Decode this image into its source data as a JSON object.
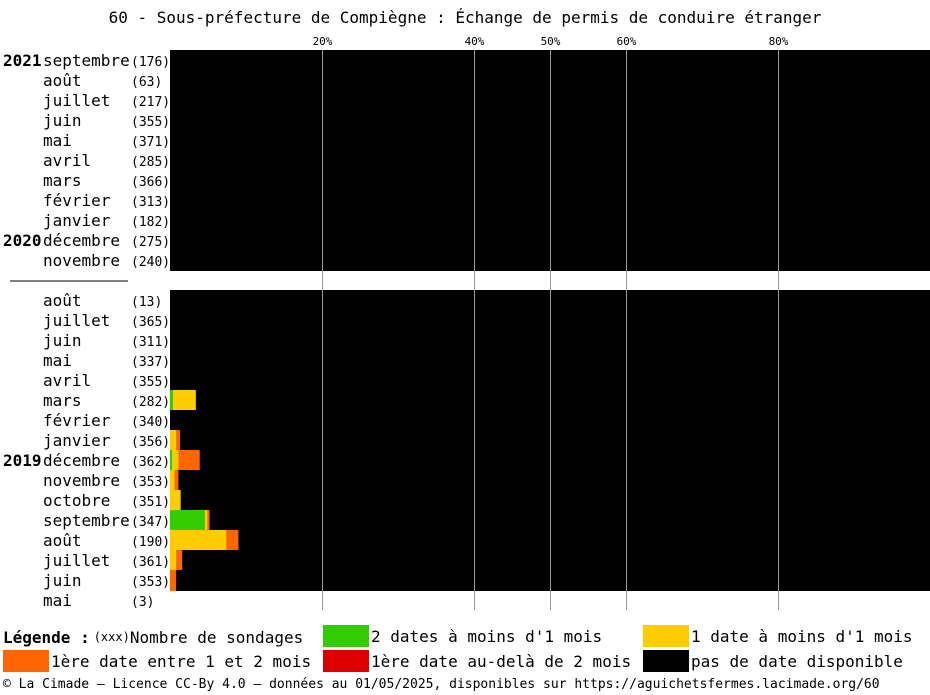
{
  "title": "60 - Sous-préfecture de Compiègne : Échange de permis de conduire étranger",
  "legend": {
    "title": "Légende :",
    "count_token": "(xxx)",
    "count_label": "Nombre de sondages",
    "items": [
      {
        "label": "2 dates à moins d'1 mois",
        "color": "#33cc00"
      },
      {
        "label": "1 date à moins d'1 mois",
        "color": "#ffcc00"
      },
      {
        "label": "1ère date entre 1 et 2 mois",
        "color": "#ff6600"
      },
      {
        "label": "1ère date au-delà de 2 mois",
        "color": "#dd0000"
      },
      {
        "label": "pas de date disponible",
        "color": "#000000"
      }
    ]
  },
  "footer": "© La Cimade — Licence CC-By 4.0 — données au 01/05/2025, disponibles sur https://aguichetsfermes.lacimade.org/60",
  "chart_data": {
    "type": "bar",
    "stacked": true,
    "orientation": "horizontal",
    "xlim": [
      0,
      100
    ],
    "ticks": [
      20,
      40,
      50,
      60,
      80
    ],
    "tick_labels": [
      "20%",
      "40%",
      "50%",
      "60%",
      "80%"
    ],
    "series_order": [
      "deux_dates",
      "une_date",
      "entre_1_2",
      "au_dela_2",
      "aucune"
    ],
    "groups": [
      {
        "rows": [
          {
            "year": "2021",
            "month": "septembre",
            "count": "(176)",
            "deux_dates": 0,
            "une_date": 0,
            "entre_1_2": 0,
            "au_dela_2": 0,
            "aucune": 100
          },
          {
            "year": "",
            "month": "août",
            "count": "(63)",
            "deux_dates": 0,
            "une_date": 0,
            "entre_1_2": 0,
            "au_dela_2": 0,
            "aucune": 100
          },
          {
            "year": "",
            "month": "juillet",
            "count": "(217)",
            "deux_dates": 0,
            "une_date": 0,
            "entre_1_2": 0,
            "au_dela_2": 0,
            "aucune": 100
          },
          {
            "year": "",
            "month": "juin",
            "count": "(355)",
            "deux_dates": 0,
            "une_date": 0,
            "entre_1_2": 0,
            "au_dela_2": 0,
            "aucune": 100
          },
          {
            "year": "",
            "month": "mai",
            "count": "(371)",
            "deux_dates": 0,
            "une_date": 0,
            "entre_1_2": 0,
            "au_dela_2": 0,
            "aucune": 100
          },
          {
            "year": "",
            "month": "avril",
            "count": "(285)",
            "deux_dates": 0,
            "une_date": 0,
            "entre_1_2": 0,
            "au_dela_2": 0,
            "aucune": 100
          },
          {
            "year": "",
            "month": "mars",
            "count": "(366)",
            "deux_dates": 0,
            "une_date": 0,
            "entre_1_2": 0,
            "au_dela_2": 0,
            "aucune": 100
          },
          {
            "year": "",
            "month": "février",
            "count": "(313)",
            "deux_dates": 0,
            "une_date": 0,
            "entre_1_2": 0,
            "au_dela_2": 0,
            "aucune": 100
          },
          {
            "year": "",
            "month": "janvier",
            "count": "(182)",
            "deux_dates": 0,
            "une_date": 0,
            "entre_1_2": 0,
            "au_dela_2": 0,
            "aucune": 100
          },
          {
            "year": "2020",
            "month": "décembre",
            "count": "(275)",
            "deux_dates": 0,
            "une_date": 0,
            "entre_1_2": 0,
            "au_dela_2": 0,
            "aucune": 100
          },
          {
            "year": "",
            "month": "novembre",
            "count": "(240)",
            "deux_dates": 0,
            "une_date": 0,
            "entre_1_2": 0,
            "au_dela_2": 0,
            "aucune": 100
          }
        ]
      },
      {
        "rows": [
          {
            "year": "",
            "month": "août",
            "count": "(13)",
            "deux_dates": 0,
            "une_date": 0,
            "entre_1_2": 0,
            "au_dela_2": 0,
            "aucune": 100
          },
          {
            "year": "",
            "month": "juillet",
            "count": "(365)",
            "deux_dates": 0,
            "une_date": 0,
            "entre_1_2": 0,
            "au_dela_2": 0,
            "aucune": 100
          },
          {
            "year": "",
            "month": "juin",
            "count": "(311)",
            "deux_dates": 0,
            "une_date": 0,
            "entre_1_2": 0,
            "au_dela_2": 0,
            "aucune": 100
          },
          {
            "year": "",
            "month": "mai",
            "count": "(337)",
            "deux_dates": 0,
            "une_date": 0,
            "entre_1_2": 0,
            "au_dela_2": 0,
            "aucune": 100
          },
          {
            "year": "",
            "month": "avril",
            "count": "(355)",
            "deux_dates": 0,
            "une_date": 0,
            "entre_1_2": 0,
            "au_dela_2": 0,
            "aucune": 100
          },
          {
            "year": "",
            "month": "mars",
            "count": "(282)",
            "deux_dates": 0.4,
            "une_date": 3.0,
            "entre_1_2": 0,
            "au_dela_2": 0,
            "aucune": 96.6
          },
          {
            "year": "",
            "month": "février",
            "count": "(340)",
            "deux_dates": 0,
            "une_date": 0,
            "entre_1_2": 0,
            "au_dela_2": 0,
            "aucune": 100
          },
          {
            "year": "",
            "month": "janvier",
            "count": "(356)",
            "deux_dates": 0,
            "une_date": 0.8,
            "entre_1_2": 0.5,
            "au_dela_2": 0,
            "aucune": 98.7
          },
          {
            "year": "2019",
            "month": "décembre",
            "count": "(362)",
            "deux_dates": 0.3,
            "une_date": 0.8,
            "entre_1_2": 2.8,
            "au_dela_2": 0,
            "aucune": 96.1
          },
          {
            "year": "",
            "month": "novembre",
            "count": "(353)",
            "deux_dates": 0,
            "une_date": 0.6,
            "entre_1_2": 0.5,
            "au_dela_2": 0,
            "aucune": 98.9
          },
          {
            "year": "",
            "month": "octobre",
            "count": "(351)",
            "deux_dates": 0,
            "une_date": 1.4,
            "entre_1_2": 0,
            "au_dela_2": 0,
            "aucune": 98.6
          },
          {
            "year": "",
            "month": "septembre",
            "count": "(347)",
            "deux_dates": 4.6,
            "une_date": 0.3,
            "entre_1_2": 0.3,
            "au_dela_2": 0,
            "aucune": 94.8
          },
          {
            "year": "",
            "month": "août",
            "count": "(190)",
            "deux_dates": 0,
            "une_date": 7.4,
            "entre_1_2": 1.6,
            "au_dela_2": 0,
            "aucune": 91.0
          },
          {
            "year": "",
            "month": "juillet",
            "count": "(361)",
            "deux_dates": 0,
            "une_date": 0.8,
            "entre_1_2": 0.8,
            "au_dela_2": 0,
            "aucune": 98.4
          },
          {
            "year": "",
            "month": "juin",
            "count": "(353)",
            "deux_dates": 0,
            "une_date": 0,
            "entre_1_2": 0.8,
            "au_dela_2": 0,
            "aucune": 99.2
          },
          {
            "year": "",
            "month": "mai",
            "count": "(3)",
            "deux_dates": 0,
            "une_date": 0,
            "entre_1_2": 0,
            "au_dela_2": 0,
            "aucune": 0
          }
        ]
      }
    ]
  }
}
